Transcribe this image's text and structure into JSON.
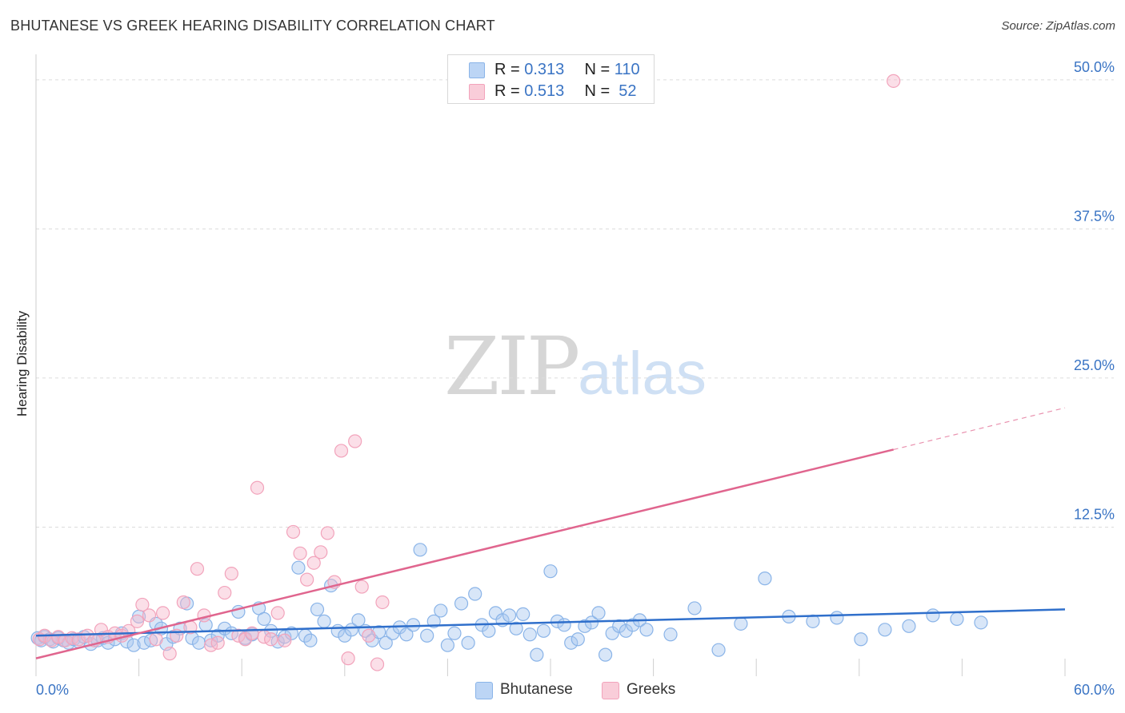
{
  "title": "BHUTANESE VS GREEK HEARING DISABILITY CORRELATION CHART",
  "source": "Source: ZipAtlas.com",
  "watermark": {
    "zip": "ZIP",
    "atlas": "atlas"
  },
  "legend": {
    "rows": [
      {
        "r_label": "R = ",
        "r_value": "0.313",
        "n_label": "N = ",
        "n_value": "110",
        "color": "#a9c8f0"
      },
      {
        "r_label": "R = ",
        "r_value": "0.513",
        "n_label": "N = ",
        "n_value": " 52",
        "color": "#f7b8cb"
      }
    ]
  },
  "bottom_legend": [
    {
      "label": "Bhutanese",
      "color": "#a9c8f0"
    },
    {
      "label": "Greeks",
      "color": "#f7b8cb"
    }
  ],
  "chart_data": {
    "type": "scatter",
    "title": "BHUTANESE VS GREEK HEARING DISABILITY CORRELATION CHART",
    "xlabel": "",
    "ylabel": "Hearing Disability",
    "xlim": [
      0,
      60
    ],
    "ylim": [
      0,
      52
    ],
    "x_tick_labels": [
      "0.0%",
      "60.0%"
    ],
    "y_ticks": [
      12.5,
      25.0,
      37.5,
      50.0
    ],
    "y_tick_labels": [
      "12.5%",
      "25.0%",
      "37.5%",
      "50.0%"
    ],
    "grid": true,
    "series": [
      {
        "name": "Bhutanese",
        "color": "#8ab4e8",
        "line_color": "#2f6fcb",
        "trend": {
          "x0": 0,
          "y0": 3.4,
          "x1": 60,
          "y1": 5.6
        },
        "points": [
          [
            0.1,
            3.2
          ],
          [
            0.3,
            3.0
          ],
          [
            0.5,
            3.3
          ],
          [
            0.8,
            3.1
          ],
          [
            1.0,
            2.9
          ],
          [
            1.3,
            3.2
          ],
          [
            1.6,
            3.0
          ],
          [
            1.9,
            2.8
          ],
          [
            2.2,
            3.1
          ],
          [
            2.5,
            2.9
          ],
          [
            2.8,
            3.3
          ],
          [
            3.2,
            2.7
          ],
          [
            3.6,
            3.0
          ],
          [
            3.9,
            3.2
          ],
          [
            4.2,
            2.8
          ],
          [
            4.6,
            3.1
          ],
          [
            5.0,
            3.6
          ],
          [
            5.3,
            2.9
          ],
          [
            5.7,
            2.6
          ],
          [
            6.0,
            5.0
          ],
          [
            6.3,
            2.8
          ],
          [
            6.7,
            3.0
          ],
          [
            7.0,
            4.4
          ],
          [
            7.3,
            4.0
          ],
          [
            7.6,
            2.7
          ],
          [
            8.0,
            3.3
          ],
          [
            8.4,
            4.0
          ],
          [
            8.8,
            6.1
          ],
          [
            9.1,
            3.2
          ],
          [
            9.5,
            2.8
          ],
          [
            9.9,
            4.3
          ],
          [
            10.2,
            3.0
          ],
          [
            10.6,
            3.4
          ],
          [
            11.0,
            4.0
          ],
          [
            11.4,
            3.6
          ],
          [
            11.8,
            5.4
          ],
          [
            12.2,
            3.2
          ],
          [
            12.6,
            3.5
          ],
          [
            13.0,
            5.7
          ],
          [
            13.3,
            4.8
          ],
          [
            13.7,
            3.8
          ],
          [
            14.1,
            2.9
          ],
          [
            14.5,
            3.3
          ],
          [
            14.9,
            3.6
          ],
          [
            15.3,
            9.1
          ],
          [
            15.7,
            3.4
          ],
          [
            16.0,
            3.0
          ],
          [
            16.4,
            5.6
          ],
          [
            16.8,
            4.6
          ],
          [
            17.2,
            7.6
          ],
          [
            17.6,
            3.8
          ],
          [
            18.0,
            3.4
          ],
          [
            18.4,
            3.9
          ],
          [
            18.8,
            4.7
          ],
          [
            19.2,
            3.8
          ],
          [
            19.6,
            3.0
          ],
          [
            20.0,
            3.7
          ],
          [
            20.4,
            2.8
          ],
          [
            20.8,
            3.6
          ],
          [
            21.2,
            4.1
          ],
          [
            21.6,
            3.5
          ],
          [
            22.0,
            4.3
          ],
          [
            22.4,
            10.6
          ],
          [
            22.8,
            3.4
          ],
          [
            23.2,
            4.6
          ],
          [
            23.6,
            5.5
          ],
          [
            24.0,
            2.6
          ],
          [
            24.4,
            3.6
          ],
          [
            24.8,
            6.1
          ],
          [
            25.2,
            2.8
          ],
          [
            25.6,
            6.9
          ],
          [
            26.0,
            4.3
          ],
          [
            26.4,
            3.8
          ],
          [
            26.8,
            5.3
          ],
          [
            27.2,
            4.7
          ],
          [
            27.6,
            5.1
          ],
          [
            28.0,
            4.0
          ],
          [
            28.4,
            5.2
          ],
          [
            28.8,
            3.5
          ],
          [
            29.2,
            1.8
          ],
          [
            29.6,
            3.8
          ],
          [
            30.0,
            8.8
          ],
          [
            30.4,
            4.6
          ],
          [
            30.8,
            4.3
          ],
          [
            31.2,
            2.8
          ],
          [
            31.6,
            3.1
          ],
          [
            32.0,
            4.2
          ],
          [
            32.4,
            4.5
          ],
          [
            32.8,
            5.3
          ],
          [
            33.2,
            1.8
          ],
          [
            33.6,
            3.6
          ],
          [
            34.0,
            4.2
          ],
          [
            34.4,
            3.8
          ],
          [
            34.8,
            4.3
          ],
          [
            35.2,
            4.7
          ],
          [
            35.6,
            3.9
          ],
          [
            37.0,
            3.5
          ],
          [
            38.4,
            5.7
          ],
          [
            39.8,
            2.2
          ],
          [
            41.1,
            4.4
          ],
          [
            42.5,
            8.2
          ],
          [
            43.9,
            5.0
          ],
          [
            45.3,
            4.6
          ],
          [
            46.7,
            4.9
          ],
          [
            48.1,
            3.1
          ],
          [
            49.5,
            3.9
          ],
          [
            50.9,
            4.2
          ],
          [
            52.3,
            5.1
          ],
          [
            53.7,
            4.8
          ],
          [
            55.1,
            4.5
          ]
        ]
      },
      {
        "name": "Greeks",
        "color": "#f2a3bb",
        "line_color": "#e0658e",
        "trend": {
          "x0": 0,
          "y0": 1.5,
          "x1": 50,
          "y1": 19.0
        },
        "trend_extension": {
          "x0": 50,
          "y0": 19.0,
          "x1": 60,
          "y1": 22.5
        },
        "points": [
          [
            0.2,
            3.1
          ],
          [
            0.5,
            3.4
          ],
          [
            0.9,
            3.0
          ],
          [
            1.3,
            3.3
          ],
          [
            1.7,
            3.0
          ],
          [
            2.1,
            3.2
          ],
          [
            2.5,
            3.1
          ],
          [
            3.0,
            3.4
          ],
          [
            3.4,
            3.0
          ],
          [
            3.8,
            3.9
          ],
          [
            4.2,
            3.3
          ],
          [
            4.6,
            3.6
          ],
          [
            5.0,
            3.4
          ],
          [
            5.4,
            3.8
          ],
          [
            5.9,
            4.6
          ],
          [
            6.2,
            6.0
          ],
          [
            6.6,
            5.1
          ],
          [
            7.0,
            3.1
          ],
          [
            7.4,
            5.3
          ],
          [
            7.8,
            1.9
          ],
          [
            8.2,
            3.4
          ],
          [
            8.6,
            6.2
          ],
          [
            9.0,
            4.1
          ],
          [
            9.4,
            9.0
          ],
          [
            9.8,
            5.1
          ],
          [
            10.2,
            2.6
          ],
          [
            10.6,
            2.8
          ],
          [
            11.0,
            7.0
          ],
          [
            11.4,
            8.6
          ],
          [
            11.8,
            3.4
          ],
          [
            12.2,
            3.1
          ],
          [
            12.6,
            3.6
          ],
          [
            12.9,
            15.8
          ],
          [
            13.3,
            3.3
          ],
          [
            13.7,
            3.1
          ],
          [
            14.1,
            5.3
          ],
          [
            14.5,
            3.0
          ],
          [
            15.0,
            12.1
          ],
          [
            15.4,
            10.3
          ],
          [
            15.8,
            8.1
          ],
          [
            16.2,
            9.5
          ],
          [
            16.6,
            10.4
          ],
          [
            17.0,
            12.0
          ],
          [
            17.4,
            7.9
          ],
          [
            17.8,
            18.9
          ],
          [
            18.2,
            1.5
          ],
          [
            18.6,
            19.7
          ],
          [
            19.0,
            7.5
          ],
          [
            19.4,
            3.4
          ],
          [
            19.9,
            1.0
          ],
          [
            20.2,
            6.2
          ],
          [
            50.0,
            49.9
          ]
        ]
      }
    ]
  }
}
